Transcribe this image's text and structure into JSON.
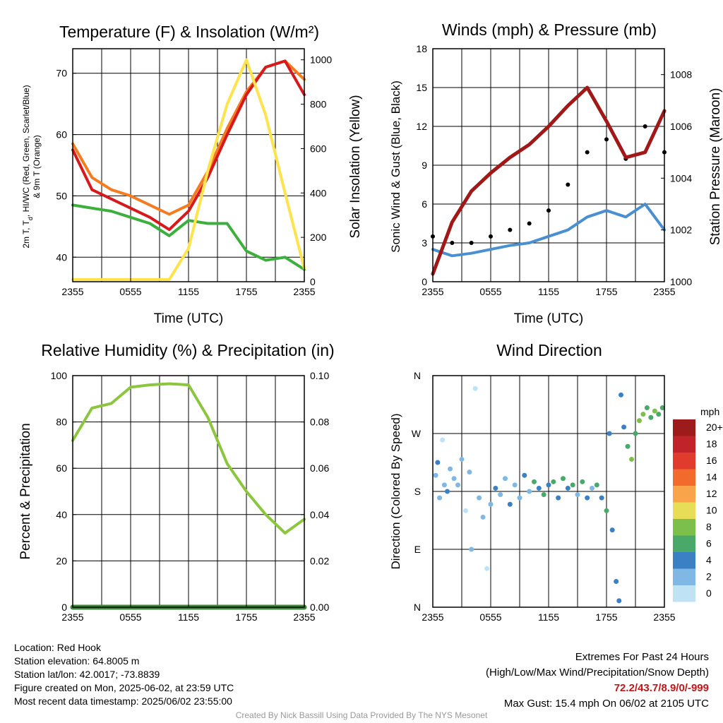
{
  "chart_data": [
    {
      "type": "line",
      "title": "Temperature (F) & Insolation (W/m²)",
      "xlabel": "Time (UTC)",
      "ylabel": "2m T, Td, HI/WC (Red, Green, Scarlet/Blue) & 9m T (Orange)",
      "ylabel_parts": [
        "2m T, T",
        "d",
        ", HI/WC (Red, Green, Scarlet/Blue)",
        "& 9m T (Orange)"
      ],
      "y2label": "Solar Insolation (Yellow)",
      "x_ticks": [
        "2355",
        "0555",
        "1155",
        "1755",
        "2355"
      ],
      "ylim": [
        36,
        74
      ],
      "y_ticks": [
        40,
        50,
        60,
        70
      ],
      "y2lim": [
        0,
        1050
      ],
      "y2_ticks": [
        0,
        200,
        400,
        600,
        800,
        1000
      ],
      "x": [
        0,
        2,
        4,
        6,
        8,
        10,
        12,
        14,
        16,
        18,
        20,
        22,
        24
      ],
      "series": [
        {
          "color": "#f47b20",
          "axis": "left",
          "values": [
            58.5,
            53,
            51,
            50,
            48.5,
            47,
            48.5,
            54,
            61,
            67,
            71,
            72,
            69
          ]
        },
        {
          "color": "#d7191c",
          "axis": "left",
          "values": [
            57.5,
            51,
            49.5,
            48,
            46.5,
            44.5,
            47.5,
            53,
            60,
            66.5,
            71,
            72,
            66.5
          ]
        },
        {
          "color": "#3caf3c",
          "axis": "left",
          "values": [
            48.5,
            48,
            47.5,
            46.5,
            45.5,
            43.5,
            46,
            45.5,
            45.5,
            41,
            39.5,
            40,
            38
          ]
        },
        {
          "color": "#ffe34d",
          "axis": "right",
          "values": [
            10,
            10,
            10,
            10,
            10,
            10,
            150,
            500,
            800,
            1000,
            750,
            400,
            60
          ]
        }
      ]
    },
    {
      "type": "line",
      "title": "Winds (mph) & Pressure (mb)",
      "xlabel": "Time (UTC)",
      "ylabel": "Sonic Wind & Gust (Blue, Black)",
      "y2label": "Station Pressure (Maroon)",
      "x_ticks": [
        "2355",
        "0555",
        "1155",
        "1755",
        "2355"
      ],
      "ylim": [
        0,
        18
      ],
      "y_ticks": [
        0,
        3,
        6,
        9,
        12,
        15,
        18
      ],
      "y2lim": [
        1000,
        1009
      ],
      "y2_ticks": [
        1000,
        1002,
        1004,
        1006,
        1008
      ],
      "x": [
        0,
        2,
        4,
        6,
        8,
        10,
        12,
        14,
        16,
        18,
        20,
        22,
        24
      ],
      "series": [
        {
          "color": "#4a90d0",
          "axis": "left",
          "values": [
            2.5,
            2,
            2.2,
            2.5,
            2.8,
            3,
            3.5,
            4,
            5,
            5.5,
            5,
            6,
            4
          ]
        },
        {
          "color": "#000000",
          "axis": "left",
          "style": "dots",
          "values": [
            3.5,
            3,
            3,
            3.5,
            4,
            4.5,
            5.5,
            7.5,
            10,
            11,
            9.5,
            12,
            10
          ]
        },
        {
          "color": "#a01818",
          "axis": "right",
          "values": [
            1000.3,
            1002.3,
            1003.5,
            1004.2,
            1004.8,
            1005.3,
            1006.0,
            1006.8,
            1007.5,
            1006.2,
            1004.8,
            1005.0,
            1006.6
          ]
        }
      ]
    },
    {
      "type": "line",
      "title": "Relative Humidity (%) & Precipitation (in)",
      "ylabel": "Percent & Precipitation",
      "x_ticks": [
        "2355",
        "0555",
        "1155",
        "1755",
        "2355"
      ],
      "ylim": [
        0,
        100
      ],
      "y_ticks": [
        0,
        20,
        40,
        60,
        80,
        100
      ],
      "y2lim": [
        0,
        0.1
      ],
      "y2_ticks": [
        "0.00",
        "0.02",
        "0.04",
        "0.06",
        "0.08",
        "0.10"
      ],
      "x": [
        0,
        2,
        4,
        6,
        8,
        10,
        12,
        14,
        16,
        18,
        20,
        22,
        24
      ],
      "series": [
        {
          "color": "#8cc63f",
          "axis": "left",
          "values": [
            72,
            86,
            88,
            95,
            96,
            96.5,
            96,
            82,
            62,
            50,
            40,
            32,
            38
          ]
        },
        {
          "color": "#3b8a3b",
          "axis": "right",
          "values": [
            0,
            0,
            0,
            0,
            0,
            0,
            0,
            0,
            0,
            0,
            0,
            0,
            0
          ]
        }
      ]
    },
    {
      "type": "scatter",
      "title": "Wind Direction",
      "ylabel": "Direction (Colored By Speed)",
      "x_ticks": [
        "2355",
        "0555",
        "1155",
        "1755",
        "2355"
      ],
      "y_ticks": [
        "N",
        "E",
        "S",
        "W",
        "N"
      ],
      "ylim": [
        0,
        360
      ],
      "colorbar_title": "mph",
      "colorbar_labels": [
        "20+",
        "18",
        "16",
        "14",
        "12",
        "10",
        "8",
        "6",
        "4",
        "2",
        "0"
      ],
      "colorbar_colors": [
        "#9e1b1b",
        "#c0242a",
        "#e03b2c",
        "#f26a2c",
        "#f9a34b",
        "#e8dd57",
        "#7cbf4a",
        "#4aa868",
        "#3b80c2",
        "#7fb8e5",
        "#bfe3f5"
      ],
      "points": [
        {
          "x": 0.3,
          "y": 205,
          "c": "#7fb8e5"
        },
        {
          "x": 0.5,
          "y": 225,
          "c": "#3b80c2"
        },
        {
          "x": 0.7,
          "y": 170,
          "c": "#7fb8e5"
        },
        {
          "x": 1.0,
          "y": 260,
          "c": "#bfe3f5"
        },
        {
          "x": 1.2,
          "y": 190,
          "c": "#7fb8e5"
        },
        {
          "x": 1.5,
          "y": 180,
          "c": "#3b80c2"
        },
        {
          "x": 1.8,
          "y": 215,
          "c": "#7fb8e5"
        },
        {
          "x": 2.2,
          "y": 200,
          "c": "#7fb8e5"
        },
        {
          "x": 2.6,
          "y": 190,
          "c": "#7fb8e5"
        },
        {
          "x": 3.0,
          "y": 230,
          "c": "#7fb8e5"
        },
        {
          "x": 3.4,
          "y": 150,
          "c": "#bfe3f5"
        },
        {
          "x": 3.8,
          "y": 210,
          "c": "#7fb8e5"
        },
        {
          "x": 4.0,
          "y": 90,
          "c": "#7fb8e5"
        },
        {
          "x": 4.4,
          "y": 340,
          "c": "#bfe3f5"
        },
        {
          "x": 4.8,
          "y": 170,
          "c": "#7fb8e5"
        },
        {
          "x": 5.2,
          "y": 140,
          "c": "#7fb8e5"
        },
        {
          "x": 5.6,
          "y": 60,
          "c": "#bfe3f5"
        },
        {
          "x": 6.0,
          "y": 160,
          "c": "#7fb8e5"
        },
        {
          "x": 6.5,
          "y": 185,
          "c": "#3b80c2"
        },
        {
          "x": 7.0,
          "y": 175,
          "c": "#7fb8e5"
        },
        {
          "x": 7.5,
          "y": 200,
          "c": "#7fb8e5"
        },
        {
          "x": 8.0,
          "y": 160,
          "c": "#3b80c2"
        },
        {
          "x": 8.5,
          "y": 190,
          "c": "#7fb8e5"
        },
        {
          "x": 9.0,
          "y": 170,
          "c": "#7fb8e5"
        },
        {
          "x": 9.5,
          "y": 205,
          "c": "#3b80c2"
        },
        {
          "x": 10.0,
          "y": 180,
          "c": "#7fb8e5"
        },
        {
          "x": 10.5,
          "y": 195,
          "c": "#4aa868"
        },
        {
          "x": 11.0,
          "y": 185,
          "c": "#3b80c2"
        },
        {
          "x": 11.5,
          "y": 175,
          "c": "#4aa868"
        },
        {
          "x": 12.0,
          "y": 190,
          "c": "#3b80c2"
        },
        {
          "x": 12.5,
          "y": 195,
          "c": "#4aa868"
        },
        {
          "x": 13.0,
          "y": 170,
          "c": "#3b80c2"
        },
        {
          "x": 13.5,
          "y": 200,
          "c": "#4aa868"
        },
        {
          "x": 14.0,
          "y": 185,
          "c": "#3b80c2"
        },
        {
          "x": 14.5,
          "y": 190,
          "c": "#4aa868"
        },
        {
          "x": 15.0,
          "y": 175,
          "c": "#7fb8e5"
        },
        {
          "x": 15.5,
          "y": 195,
          "c": "#4aa868"
        },
        {
          "x": 16.0,
          "y": 170,
          "c": "#3b80c2"
        },
        {
          "x": 16.5,
          "y": 185,
          "c": "#7fb8e5"
        },
        {
          "x": 17.0,
          "y": 190,
          "c": "#4aa868"
        },
        {
          "x": 17.5,
          "y": 170,
          "c": "#3b80c2"
        },
        {
          "x": 18.0,
          "y": 150,
          "c": "#4aa868"
        },
        {
          "x": 18.3,
          "y": 270,
          "c": "#3b80c2"
        },
        {
          "x": 18.6,
          "y": 120,
          "c": "#3b80c2"
        },
        {
          "x": 19.0,
          "y": 40,
          "c": "#3b80c2"
        },
        {
          "x": 19.3,
          "y": 10,
          "c": "#3b80c2"
        },
        {
          "x": 19.5,
          "y": 330,
          "c": "#3b80c2"
        },
        {
          "x": 19.8,
          "y": 280,
          "c": "#3b80c2"
        },
        {
          "x": 20.2,
          "y": 250,
          "c": "#4aa868"
        },
        {
          "x": 20.6,
          "y": 230,
          "c": "#7cbf4a"
        },
        {
          "x": 21.0,
          "y": 270,
          "c": "#4aa868"
        },
        {
          "x": 21.4,
          "y": 290,
          "c": "#7cbf4a"
        },
        {
          "x": 21.8,
          "y": 300,
          "c": "#7cbf4a"
        },
        {
          "x": 22.2,
          "y": 310,
          "c": "#4aa868"
        },
        {
          "x": 22.6,
          "y": 295,
          "c": "#4aa868"
        },
        {
          "x": 23.0,
          "y": 305,
          "c": "#7cbf4a"
        },
        {
          "x": 23.4,
          "y": 300,
          "c": "#4aa868"
        },
        {
          "x": 23.8,
          "y": 310,
          "c": "#4aa868"
        }
      ]
    }
  ],
  "footer": {
    "location": "Location: Red Hook",
    "elevation": "Station elevation: 64.8005 m",
    "latlon": "Station lat/lon: 42.0017; -73.8839",
    "created": "Figure created on Mon, 2025-06-02, at 23:59 UTC",
    "recent": "Most recent data timestamp: 2025/06/02 23:55:00",
    "extremes_title": "Extremes For Past 24 Hours",
    "extremes_legend": "(High/Low/Max Wind/Precipitation/Snow Depth)",
    "extremes_values": "72.2/43.7/8.9/0/-999",
    "max_gust": "Max Gust: 15.4 mph On 06/02 at 2105 UTC",
    "credit": "Created By Nick Bassill Using Data Provided By The NYS Mesonet"
  }
}
